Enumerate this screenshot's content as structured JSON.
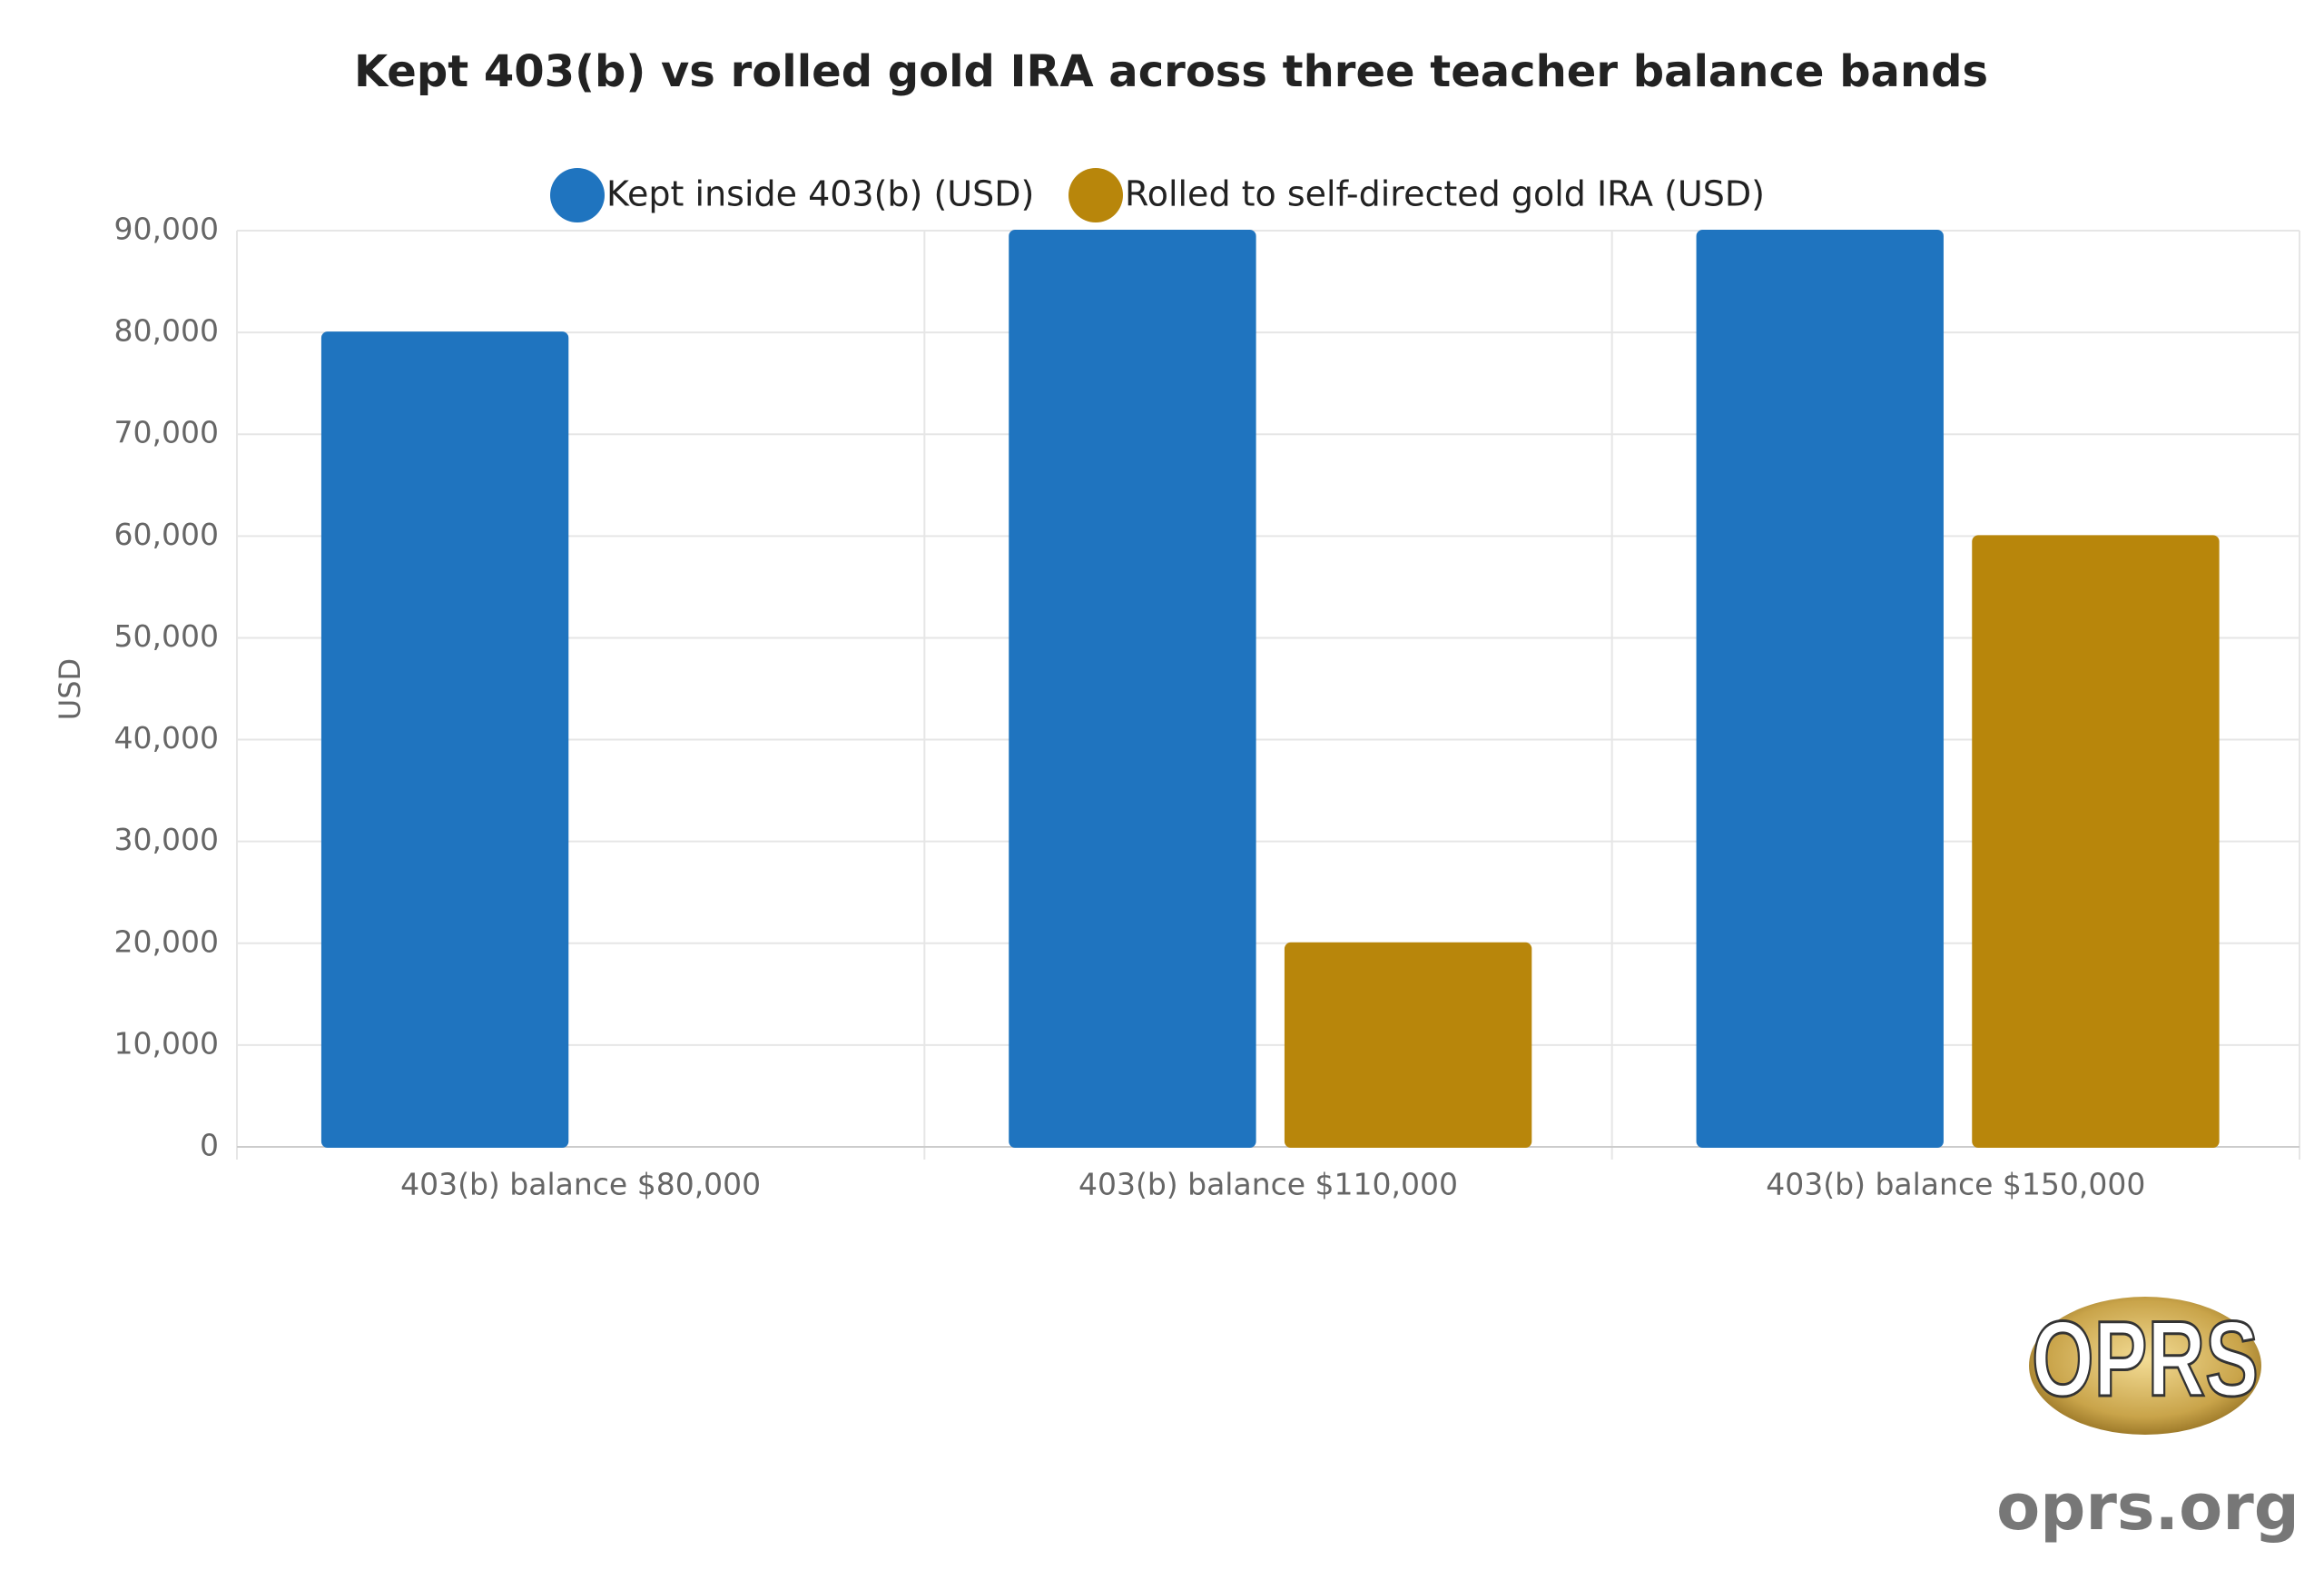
{
  "chart_data": {
    "type": "bar",
    "title": "Kept 403(b) vs rolled gold IRA across three teacher balance bands",
    "categories": [
      "403(b) balance $80,000",
      "403(b) balance $110,000",
      "403(b) balance $150,000"
    ],
    "series": [
      {
        "name": "Kept inside 403(b) (USD)",
        "color": "#1f74bf",
        "values": [
          80000,
          90000,
          90000
        ]
      },
      {
        "name": "Rolled to self-directed gold IRA (USD)",
        "color": "#b8860b",
        "values": [
          0,
          20000,
          60000
        ]
      }
    ],
    "ylabel": "USD",
    "ylim": [
      0,
      90000
    ],
    "yticks": [
      0,
      {
        "value": 10000,
        "label": "10,000"
      },
      {
        "value": 20000,
        "label": "20,000"
      },
      {
        "value": 30000,
        "label": "30,000"
      },
      {
        "value": 40000,
        "label": "40,000"
      },
      {
        "value": 50000,
        "label": "50,000"
      },
      {
        "value": 60000,
        "label": "60,000"
      },
      {
        "value": 70000,
        "label": "70,000"
      },
      {
        "value": 80000,
        "label": "80,000"
      },
      {
        "value": 90000,
        "label": "90,000"
      }
    ],
    "grid": true,
    "legend": "top"
  },
  "branding": {
    "logo": "OPRS",
    "site": "oprs.org"
  }
}
